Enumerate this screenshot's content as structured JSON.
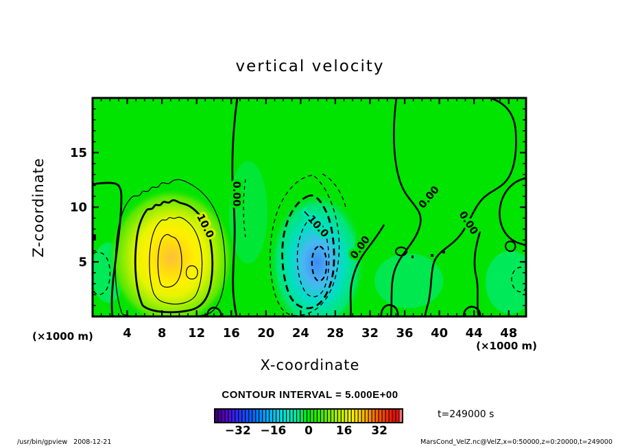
{
  "chart_data": {
    "type": "contour",
    "title": "vertical velocity",
    "grid": false,
    "x_axis": {
      "label": "X-coordinate",
      "unit_label": "(×1000 m)",
      "range": [
        0,
        50
      ],
      "major_ticks": [
        4,
        8,
        12,
        16,
        20,
        24,
        28,
        32,
        36,
        40,
        44,
        48
      ],
      "minor_step": 1
    },
    "y_axis": {
      "label": "Z-coordinate",
      "unit_label": "(×1000 m)",
      "range": [
        0,
        20
      ],
      "major_ticks": [
        5,
        10,
        15
      ],
      "minor_step": 1
    },
    "contour_interval": 5.0,
    "contour_interval_text": "CONTOUR INTERVAL = 5.000E+00",
    "contour_labels": [
      {
        "value": 0,
        "text": "0.00"
      },
      {
        "value": 10,
        "text": "10.0"
      },
      {
        "value": -10,
        "text": "−10.0"
      },
      {
        "value": 0,
        "text": "0.00"
      },
      {
        "value": 0,
        "text": "0.00"
      },
      {
        "value": 0,
        "text": "0.00"
      }
    ],
    "field_summary": {
      "background_value": 0,
      "positive_peak": {
        "value": 27,
        "x": 8.5,
        "z": 4.5
      },
      "negative_peak": {
        "value": -27,
        "x": 25.5,
        "z": 4.5
      },
      "positive_contours_style": "solid",
      "negative_contours_style": "dashed"
    },
    "colorbar": {
      "range": [
        -42.5,
        42.5
      ],
      "cells": 55,
      "tick_values": [
        -32,
        -16,
        0,
        16,
        32
      ],
      "tick_labels": [
        "−32",
        "−16",
        "0",
        "16",
        "32"
      ],
      "stops": [
        [
          0.0,
          "#38006e"
        ],
        [
          0.06,
          "#5a00c8"
        ],
        [
          0.12,
          "#2c2cff"
        ],
        [
          0.2,
          "#0064ff"
        ],
        [
          0.28,
          "#00aaff"
        ],
        [
          0.36,
          "#00e0e0"
        ],
        [
          0.44,
          "#00e896"
        ],
        [
          0.5,
          "#00e400"
        ],
        [
          0.58,
          "#55ea00"
        ],
        [
          0.66,
          "#b4f000"
        ],
        [
          0.74,
          "#ffee00"
        ],
        [
          0.8,
          "#ffb400"
        ],
        [
          0.86,
          "#ff6400"
        ],
        [
          0.93,
          "#ee2800"
        ],
        [
          0.97,
          "#e80000"
        ],
        [
          1.0,
          "#ffa0a0"
        ]
      ]
    },
    "time_label": "t=249000 s",
    "colors": {
      "background": "#ffffff",
      "field_base": "#00e400",
      "positive_core": "#ffbe3c",
      "negative_core": "#3c8cf2",
      "contour_line": "#000000"
    }
  },
  "footer": {
    "left": "/usr/bin/gpview   2008-12-21",
    "right": "MarsCond_VelZ.nc@VelZ,x=0:50000,z=0:20000,t=249000"
  }
}
